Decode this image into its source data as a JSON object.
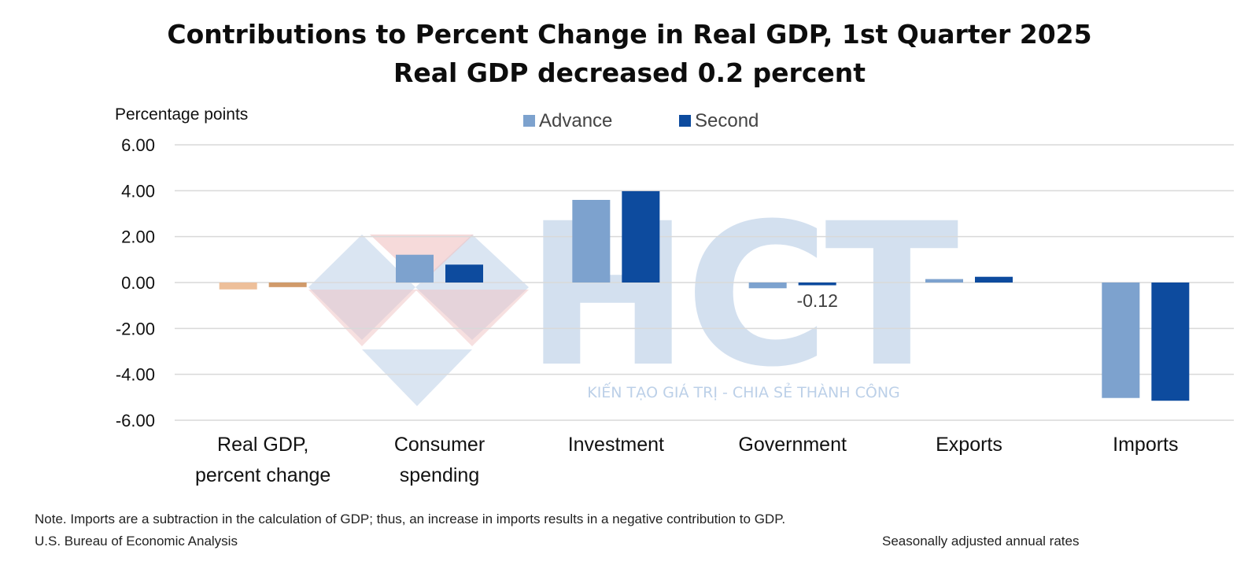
{
  "title": "Contributions to Percent Change in Real GDP, 1st Quarter 2025",
  "subtitle": "Real GDP decreased 0.2 percent",
  "note": "Note. Imports are a subtraction in the calculation of GDP; thus, an increase in imports results in a negative contribution to GDP.",
  "source": "U.S. Bureau of Economic Analysis",
  "rates": "Seasonally adjusted annual rates",
  "watermark": {
    "text": "KIẾN TẠO GIÁ TRỊ - CHIA SẺ THÀNH CÔNG",
    "logo_text": "HCT"
  },
  "colors": {
    "advance": "#7da2ce",
    "second": "#0d4b9e",
    "gdp_advance": "#edbf9a",
    "gdp_second": "#d09a6a",
    "grid": "#d9d9d9",
    "watermark_blue": "#bcd0e8",
    "watermark_red": "#f0c2c2"
  },
  "chart_data": {
    "type": "bar",
    "ylabel": "Percentage points",
    "ylim": [
      -6,
      6
    ],
    "yticks": [
      6,
      4,
      2,
      0,
      -2,
      -4,
      -6
    ],
    "ytick_labels": [
      "6.00",
      "4.00",
      "2.00",
      "0.00",
      "-2.00",
      "-4.00",
      "-6.00"
    ],
    "grid": true,
    "legend_position": "top-center",
    "categories": [
      [
        "Real GDP,",
        "percent change"
      ],
      [
        "Consumer",
        "spending"
      ],
      [
        "Investment"
      ],
      [
        "Government"
      ],
      [
        "Exports"
      ],
      [
        "Imports"
      ]
    ],
    "series": [
      {
        "name": "Advance",
        "values": [
          -0.3,
          1.21,
          3.6,
          -0.25,
          0.15,
          -5.03
        ]
      },
      {
        "name": "Second",
        "values": [
          -0.2,
          0.78,
          3.98,
          -0.12,
          0.25,
          -5.15
        ]
      }
    ],
    "annotations": [
      {
        "text": "-0.12",
        "category_index": 3,
        "series_index": 1
      }
    ]
  }
}
